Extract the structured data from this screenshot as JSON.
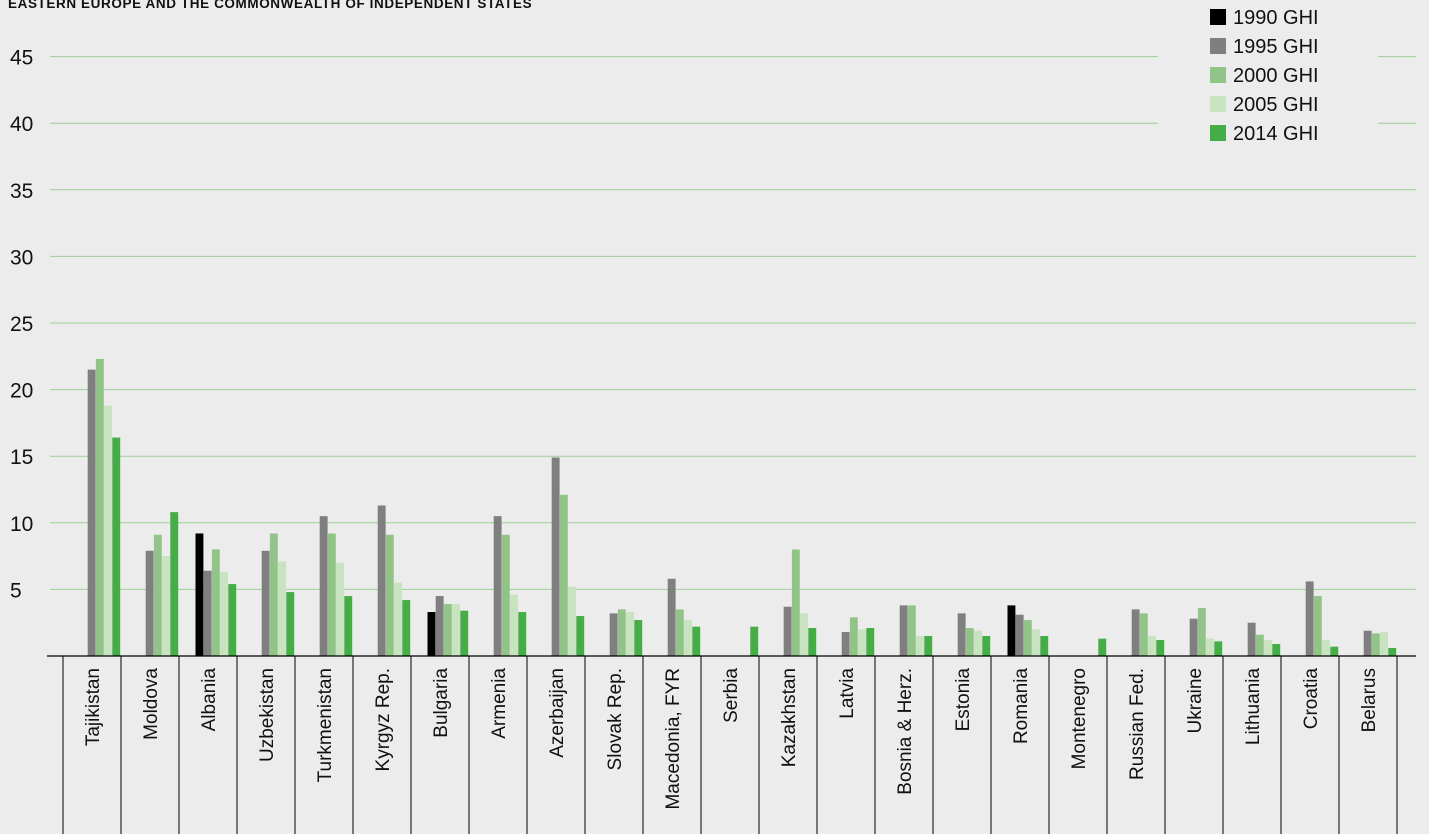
{
  "chart_data": {
    "type": "bar",
    "title": "EASTERN EUROPE AND THE COMMONWEALTH OF INDEPENDENT STATES",
    "xlabel": "",
    "ylabel": "",
    "ylim": [
      0,
      45
    ],
    "yticks": [
      5,
      10,
      15,
      20,
      25,
      30,
      35,
      40,
      45
    ],
    "grid": true,
    "legend_position": "top-right",
    "categories": [
      "Tajikistan",
      "Moldova",
      "Albania",
      "Uzbekistan",
      "Turkmenistan",
      "Kyrgyz Rep.",
      "Bulgaria",
      "Armenia",
      "Azerbaijan",
      "Slovak Rep.",
      "Macedonia, FYR",
      "Serbia",
      "Kazakhstan",
      "Latvia",
      "Bosnia & Herz.",
      "Estonia",
      "Romania",
      "Montenegro",
      "Russian Fed.",
      "Ukraine",
      "Lithuania",
      "Croatia",
      "Belarus"
    ],
    "series": [
      {
        "name": "1990 GHI",
        "color": "#000000",
        "values": [
          null,
          null,
          9.2,
          null,
          null,
          null,
          3.3,
          null,
          null,
          null,
          null,
          null,
          null,
          null,
          null,
          null,
          3.8,
          null,
          null,
          null,
          null,
          null,
          null
        ]
      },
      {
        "name": "1995 GHI",
        "color": "#7f7f7f",
        "values": [
          21.5,
          7.9,
          6.4,
          7.9,
          10.5,
          11.3,
          4.5,
          10.5,
          14.9,
          3.2,
          5.8,
          null,
          3.7,
          1.8,
          3.8,
          3.2,
          3.1,
          null,
          3.5,
          2.8,
          2.5,
          5.6,
          1.9
        ]
      },
      {
        "name": "2000 GHI",
        "color": "#92c389",
        "values": [
          22.3,
          9.1,
          8.0,
          9.2,
          9.2,
          9.1,
          3.9,
          9.1,
          12.1,
          3.5,
          3.5,
          null,
          8.0,
          2.9,
          3.8,
          2.1,
          2.7,
          null,
          3.2,
          3.6,
          1.6,
          4.5,
          1.7
        ]
      },
      {
        "name": "2005 GHI",
        "color": "#c8e3c0",
        "values": [
          18.8,
          7.5,
          6.3,
          7.1,
          7.0,
          5.5,
          3.9,
          4.6,
          5.2,
          3.3,
          2.7,
          null,
          3.2,
          2.0,
          1.5,
          1.9,
          2.0,
          null,
          1.5,
          1.3,
          1.2,
          1.2,
          1.8
        ]
      },
      {
        "name": "2014 GHI",
        "color": "#45ad45",
        "values": [
          16.4,
          10.8,
          5.4,
          4.8,
          4.5,
          4.2,
          3.4,
          3.3,
          3.0,
          2.7,
          2.2,
          2.2,
          2.1,
          2.1,
          1.5,
          1.5,
          1.5,
          1.3,
          1.2,
          1.1,
          0.9,
          0.7,
          0.6
        ]
      }
    ]
  }
}
